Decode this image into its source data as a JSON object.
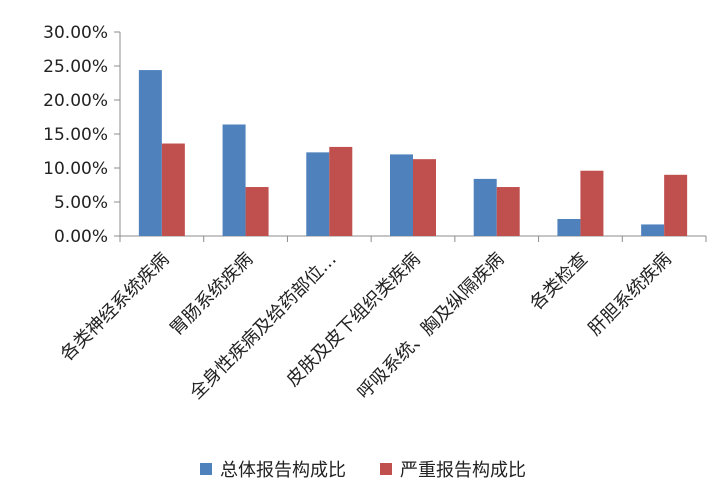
{
  "chart_data": {
    "type": "bar",
    "categories": [
      "各类神经系统疾病",
      "胃肠系统疾病",
      "全身性疾病及给药部位…",
      "皮肤及皮下组织类疾病",
      "呼吸系统、胸及纵隔疾病",
      "各类检查",
      "肝胆系统疾病"
    ],
    "series": [
      {
        "name": "总体报告构成比",
        "color": "#4f81bd",
        "values": [
          24.4,
          16.4,
          12.3,
          12.0,
          8.4,
          2.5,
          1.7
        ]
      },
      {
        "name": "严重报告构成比",
        "color": "#c0504d",
        "values": [
          13.6,
          7.2,
          13.1,
          11.3,
          7.2,
          9.6,
          9.0
        ]
      }
    ],
    "y_ticks": [
      "0.00%",
      "5.00%",
      "10.00%",
      "15.00%",
      "20.00%",
      "25.00%",
      "30.00%"
    ],
    "ylim": [
      0,
      30
    ],
    "y_unit": "%",
    "title": "",
    "xlabel": "",
    "ylabel": "",
    "legend_position": "bottom",
    "grid": false
  }
}
